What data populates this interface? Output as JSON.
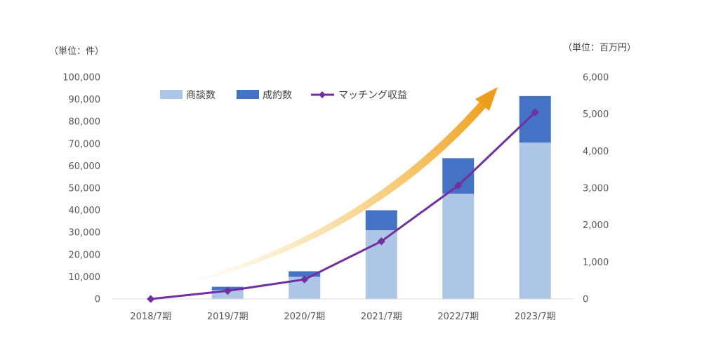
{
  "chart_data": {
    "type": "bar",
    "categories": [
      "2018/7期",
      "2019/7期",
      "2020/7期",
      "2021/7期",
      "2022/7期",
      "2023/7期"
    ],
    "series": [
      {
        "name": "商談数",
        "type": "stacked-bar",
        "axis": "left",
        "color": "#aec6e6",
        "values": [
          0,
          4000,
          10000,
          31000,
          47500,
          70500
        ]
      },
      {
        "name": "成約数",
        "type": "stacked-bar",
        "axis": "left",
        "color": "#4472c4",
        "values": [
          0,
          1500,
          2500,
          9000,
          16000,
          21000
        ]
      },
      {
        "name": "マッチング収益",
        "type": "line",
        "axis": "right",
        "color": "#7030a0",
        "values": [
          0,
          220,
          530,
          1560,
          3070,
          5050
        ]
      }
    ],
    "y_left": {
      "unit_label": "（単位：件）",
      "ylim": [
        0,
        100000
      ],
      "ticks": [
        "0",
        "10,000",
        "20,000",
        "30,000",
        "40,000",
        "50,000",
        "60,000",
        "70,000",
        "80,000",
        "90,000",
        "100,000"
      ]
    },
    "y_right": {
      "unit_label": "（単位：百万円）",
      "ylim": [
        0,
        6000
      ],
      "ticks": [
        "0",
        "1,000",
        "2,000",
        "3,000",
        "4,000",
        "5,000",
        "6,000"
      ]
    },
    "legend": {
      "position": "top-left"
    },
    "grid": false,
    "arrow_color": "#f0a020"
  }
}
